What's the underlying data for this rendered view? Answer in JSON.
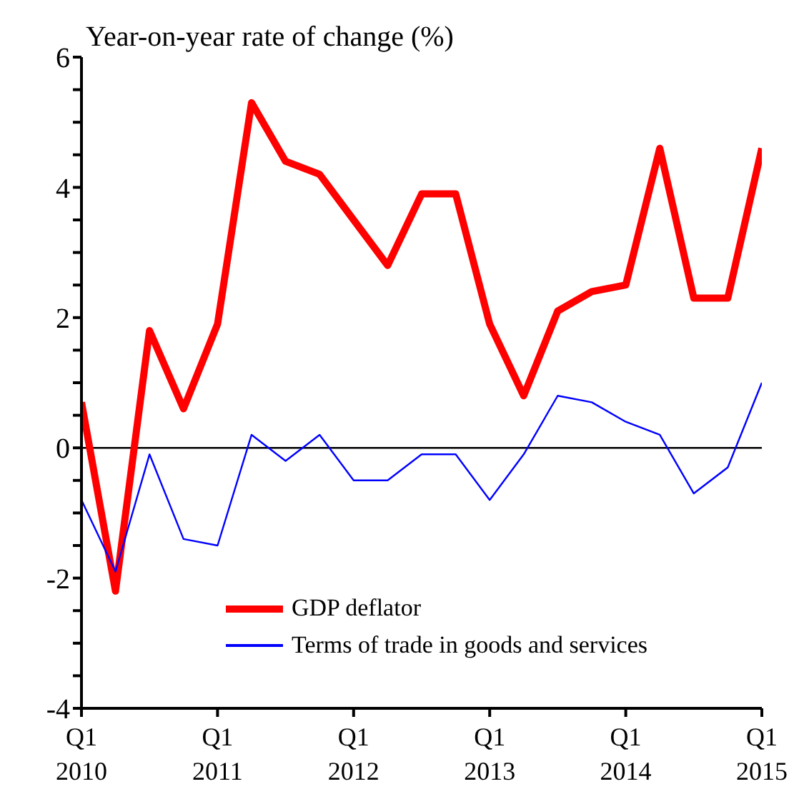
{
  "chart_data": {
    "type": "line",
    "ylabel": "Year-on-year rate of change (%)",
    "categories": [
      "Q1 2010",
      null,
      null,
      null,
      "Q1 2011",
      null,
      null,
      null,
      "Q1 2012",
      null,
      null,
      null,
      "Q1 2013",
      null,
      null,
      null,
      "Q1 2014",
      null,
      null,
      null,
      "Q1 2015"
    ],
    "series": [
      {
        "name": "GDP deflator",
        "color": "#ff0000",
        "values": [
          0.7,
          -2.2,
          1.8,
          0.6,
          1.9,
          5.3,
          4.4,
          4.2,
          3.5,
          2.8,
          3.9,
          3.9,
          1.9,
          0.8,
          2.1,
          2.4,
          2.5,
          4.6,
          2.3,
          2.3,
          4.6
        ]
      },
      {
        "name": "Terms of trade in goods and services",
        "color": "#0000ff",
        "values": [
          -0.8,
          -1.9,
          -0.1,
          -1.4,
          -1.5,
          0.2,
          -0.2,
          0.2,
          -0.5,
          -0.5,
          -0.1,
          -0.1,
          -0.8,
          -0.1,
          0.8,
          0.7,
          0.4,
          0.2,
          -0.7,
          -0.3,
          1.0
        ]
      }
    ],
    "ylim": [
      -4,
      6
    ],
    "yticks": [
      -4,
      {
        "value": -3.5,
        "label": null
      },
      {
        "value": -3,
        "label": null
      },
      {
        "value": -2.5,
        "label": null
      },
      -2,
      {
        "value": -1.5,
        "label": null
      },
      {
        "value": -1,
        "label": null
      },
      {
        "value": -0.5,
        "label": null
      },
      0,
      {
        "value": 0.5,
        "label": null
      },
      {
        "value": 1,
        "label": null
      },
      {
        "value": 1.5,
        "label": null
      },
      2,
      {
        "value": 2.5,
        "label": null
      },
      {
        "value": 3,
        "label": null
      },
      {
        "value": 3.5,
        "label": null
      },
      4,
      {
        "value": 4.5,
        "label": null
      },
      {
        "value": 5,
        "label": null
      },
      {
        "value": 5.5,
        "label": null
      },
      6
    ],
    "ref_lines": [
      {
        "axis": "y",
        "value": 0,
        "color": "#000000"
      }
    ],
    "legend": "bottom",
    "grid": false,
    "marker": "none",
    "line_style": "solid"
  }
}
